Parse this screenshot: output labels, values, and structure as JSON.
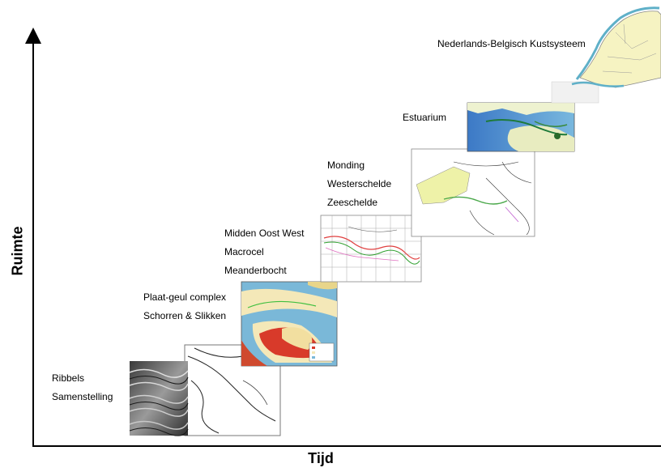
{
  "axes": {
    "y_title": "Ruimte",
    "x_title": "Tijd"
  },
  "levels": [
    {
      "lines": [
        "Ribbels",
        "Samenstelling"
      ],
      "image": "sand-ripples-photo"
    },
    {
      "lines": [
        "Plaat-geul complex",
        "Schorren & Slikken"
      ],
      "image": "tidal-flat-map"
    },
    {
      "lines": [
        "Midden Oost West",
        "Macrocel",
        "Meanderbocht"
      ],
      "image": "meander-grid-map"
    },
    {
      "lines": [
        "Monding",
        "Westerschelde",
        "Zeeschelde"
      ],
      "image": "estuary-outline-map"
    },
    {
      "lines": [
        "Estuarium"
      ],
      "image": "estuary-bathymetry-map"
    },
    {
      "lines": [
        "Nederlands-Belgisch Kustsysteem"
      ],
      "image": "netherlands-coast-map"
    }
  ],
  "colors": {
    "axis": "#000000",
    "sea": "#7ac0dc",
    "land": "#f6f3c2",
    "flat_red": "#d83a2a",
    "flat_cream": "#f4e8b8",
    "sand": "#6b6b6b"
  }
}
